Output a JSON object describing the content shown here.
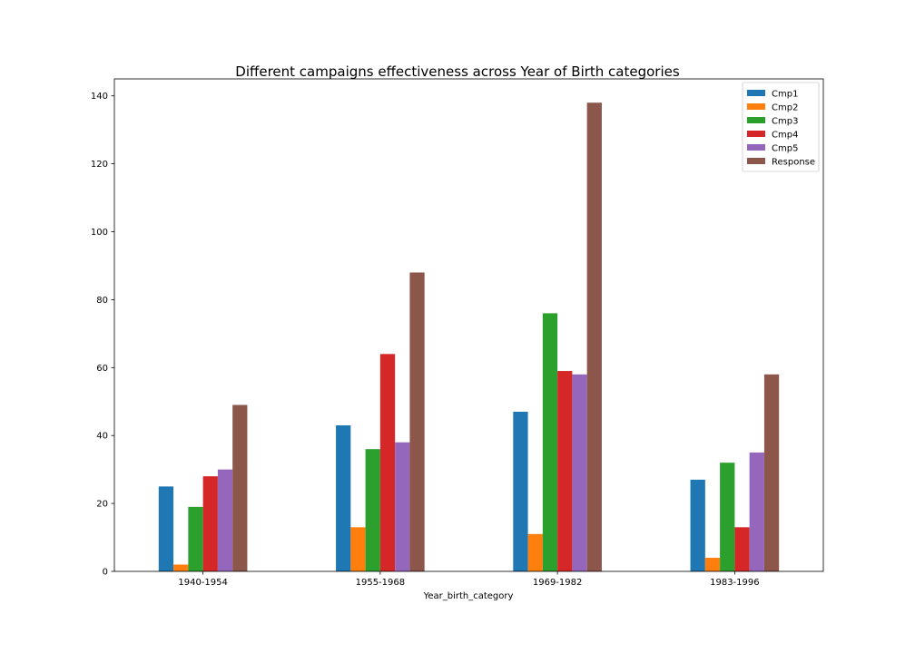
{
  "chart_data": {
    "type": "bar",
    "title": "Different campaigns effectiveness across Year of Birth categories",
    "xlabel": "Year_birth_category",
    "ylabel": "",
    "categories": [
      "1940-1954",
      "1955-1968",
      "1969-1982",
      "1983-1996"
    ],
    "ylim": [
      0,
      145
    ],
    "yticks": [
      0,
      20,
      40,
      60,
      80,
      100,
      120,
      140
    ],
    "grid": false,
    "legend_position": "top-right",
    "series": [
      {
        "name": "Cmp1",
        "color": "#1f77b4",
        "values": [
          25,
          43,
          47,
          27
        ]
      },
      {
        "name": "Cmp2",
        "color": "#ff7f0e",
        "values": [
          2,
          13,
          11,
          4
        ]
      },
      {
        "name": "Cmp3",
        "color": "#2ca02c",
        "values": [
          19,
          36,
          76,
          32
        ]
      },
      {
        "name": "Cmp4",
        "color": "#d62728",
        "values": [
          28,
          64,
          59,
          13
        ]
      },
      {
        "name": "Cmp5",
        "color": "#9467bd",
        "values": [
          30,
          38,
          58,
          35
        ]
      },
      {
        "name": "Response",
        "color": "#8c564b",
        "values": [
          49,
          88,
          138,
          58
        ]
      }
    ]
  }
}
